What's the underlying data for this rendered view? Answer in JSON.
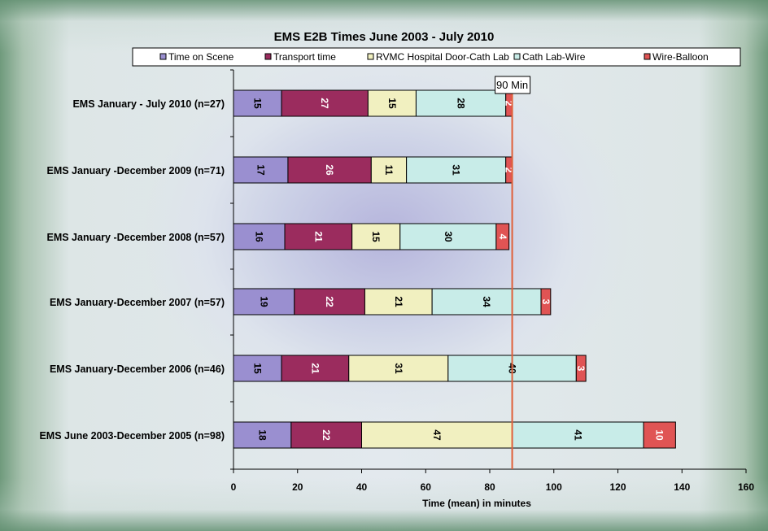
{
  "chart_data": {
    "type": "bar",
    "orientation": "horizontal",
    "stacked": true,
    "title": "EMS E2B Times June 2003 - July 2010",
    "xlabel": "Time (mean) in minutes",
    "ylabel": "",
    "xlim": [
      0,
      160
    ],
    "xticks": [
      0,
      20,
      40,
      60,
      80,
      100,
      120,
      140,
      160
    ],
    "categories": [
      "EMS January - July 2010 (n=27)",
      "EMS January -December 2009 (n=71)",
      "EMS January -December 2008 (n=57)",
      "EMS January-December 2007 (n=57)",
      "EMS January-December 2006 (n=46)",
      "EMS June 2003-December 2005 (n=98)"
    ],
    "series": [
      {
        "name": "Time on Scene",
        "color": "#9a8fd0",
        "label_color": "#000000",
        "values": [
          15,
          17,
          16,
          19,
          15,
          18
        ]
      },
      {
        "name": "Transport time",
        "color": "#9b2c5e",
        "label_color": "#ffffff",
        "values": [
          27,
          26,
          21,
          22,
          21,
          22
        ]
      },
      {
        "name": "RVMC Hospital Door-Cath Lab",
        "color": "#f1f0c0",
        "label_color": "#000000",
        "values": [
          15,
          11,
          15,
          21,
          31,
          47
        ]
      },
      {
        "name": "Cath Lab-Wire",
        "color": "#c8ece8",
        "label_color": "#000000",
        "values": [
          28,
          31,
          30,
          34,
          40,
          41
        ]
      },
      {
        "name": "Wire-Balloon",
        "color": "#e05454",
        "label_color": "#ffffff",
        "values": [
          2,
          2,
          4,
          3,
          3,
          10
        ]
      }
    ],
    "reference_line": {
      "value": 87,
      "label": "90 Min",
      "color": "#e0603a"
    },
    "grid": false,
    "legend_position": "top"
  }
}
